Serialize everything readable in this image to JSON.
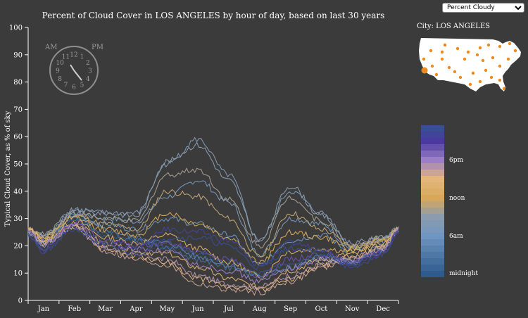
{
  "header": {
    "title": "Percent of Cloud Cover in LOS ANGELES by hour of day, based on last 30 years"
  },
  "controls": {
    "metric_select": {
      "selected": "Percent Cloudy",
      "options": [
        "Percent Cloudy"
      ]
    }
  },
  "clock": {
    "am_label": "AM",
    "pm_label": "PM",
    "numbers": [
      "12",
      "1",
      "2",
      "3",
      "4",
      "5",
      "6",
      "7",
      "8",
      "9",
      "10",
      "11"
    ]
  },
  "map": {
    "city_label": "City: LOS ANGELES"
  },
  "legend": {
    "labels": [
      "6pm",
      "noon",
      "6am",
      "midnight"
    ]
  },
  "colors": {
    "background": "#3b3b3b"
  },
  "chart_data": {
    "type": "line",
    "ylabel": "Typical Cloud Cover, as % of sky",
    "xlabel": "",
    "ylim": [
      0,
      100
    ],
    "yticks": [
      0,
      10,
      20,
      30,
      40,
      50,
      60,
      70,
      80,
      90,
      100
    ],
    "month_ticks": [
      "Jan",
      "Feb",
      "Mar",
      "Apr",
      "May",
      "Jun",
      "Jul",
      "Aug",
      "Sep",
      "Oct",
      "Nov",
      "Dec"
    ],
    "x_unit": "month",
    "xlim": [
      0,
      12
    ],
    "anchor_x": [
      0,
      0.5,
      1.5,
      2.5,
      3.5,
      4.5,
      5.5,
      6.5,
      7.5,
      8.5,
      9.5,
      10.5,
      11.5,
      12
    ],
    "series": [
      {
        "hour": 0,
        "values": [
          25,
          20,
          30,
          24,
          22,
          20,
          17,
          14,
          10,
          14,
          17,
          14,
          19,
          26
        ]
      },
      {
        "hour": 2,
        "values": [
          25,
          21,
          30,
          25,
          22,
          19,
          15,
          12,
          9,
          12,
          15,
          14,
          19,
          26
        ]
      },
      {
        "hour": 4,
        "values": [
          25,
          21,
          31,
          26,
          23,
          21,
          16,
          13,
          9,
          12,
          16,
          14,
          20,
          26
        ]
      },
      {
        "hour": 6,
        "values": [
          25,
          22,
          31,
          28,
          26,
          30,
          28,
          24,
          13,
          22,
          24,
          18,
          21,
          26
        ]
      },
      {
        "hour": 7,
        "values": [
          26,
          23,
          32,
          30,
          29,
          38,
          44,
          36,
          17,
          30,
          28,
          19,
          22,
          26
        ]
      },
      {
        "hour": 8,
        "values": [
          26,
          24,
          33,
          32,
          32,
          50,
          59,
          46,
          22,
          40,
          32,
          20,
          23,
          26
        ]
      },
      {
        "hour": 9,
        "values": [
          26,
          24,
          33,
          32,
          31,
          51,
          57,
          44,
          22,
          42,
          31,
          21,
          23,
          26
        ]
      },
      {
        "hour": 10,
        "values": [
          26,
          24,
          32,
          30,
          29,
          46,
          48,
          37,
          20,
          38,
          29,
          20,
          23,
          26
        ]
      },
      {
        "hour": 11,
        "values": [
          26,
          23,
          31,
          28,
          26,
          40,
          38,
          30,
          16,
          32,
          26,
          20,
          22,
          26
        ]
      },
      {
        "hour": 12,
        "values": [
          26,
          23,
          30,
          26,
          24,
          32,
          28,
          23,
          14,
          25,
          23,
          19,
          22,
          26
        ]
      },
      {
        "hour": 13,
        "values": [
          26,
          22,
          29,
          23,
          21,
          24,
          19,
          14,
          9,
          18,
          19,
          18,
          21,
          26
        ]
      },
      {
        "hour": 14,
        "values": [
          26,
          22,
          28,
          21,
          18,
          17,
          12,
          8,
          5,
          11,
          15,
          17,
          20,
          26
        ]
      },
      {
        "hour": 15,
        "values": [
          26,
          21,
          27,
          19,
          16,
          14,
          8,
          5,
          4,
          8,
          13,
          16,
          19,
          26
        ]
      },
      {
        "hour": 16,
        "values": [
          26,
          21,
          27,
          18,
          15,
          13,
          6,
          4,
          3,
          7,
          12,
          16,
          19,
          26
        ]
      },
      {
        "hour": 17,
        "values": [
          25,
          21,
          27,
          19,
          17,
          15,
          9,
          6,
          5,
          9,
          13,
          15,
          19,
          26
        ]
      },
      {
        "hour": 18,
        "values": [
          25,
          20,
          28,
          20,
          19,
          18,
          13,
          11,
          7,
          12,
          15,
          14,
          18,
          26
        ]
      },
      {
        "hour": 20,
        "values": [
          25,
          19,
          29,
          22,
          20,
          21,
          18,
          15,
          9,
          15,
          17,
          14,
          18,
          26
        ]
      },
      {
        "hour": 22,
        "values": [
          24,
          18,
          27,
          21,
          19,
          26,
          25,
          22,
          13,
          21,
          19,
          13,
          17,
          25
        ]
      },
      {
        "hour": 23,
        "values": [
          24,
          18,
          26,
          20,
          17,
          23,
          23,
          20,
          12,
          19,
          18,
          12,
          17,
          25
        ]
      }
    ]
  }
}
